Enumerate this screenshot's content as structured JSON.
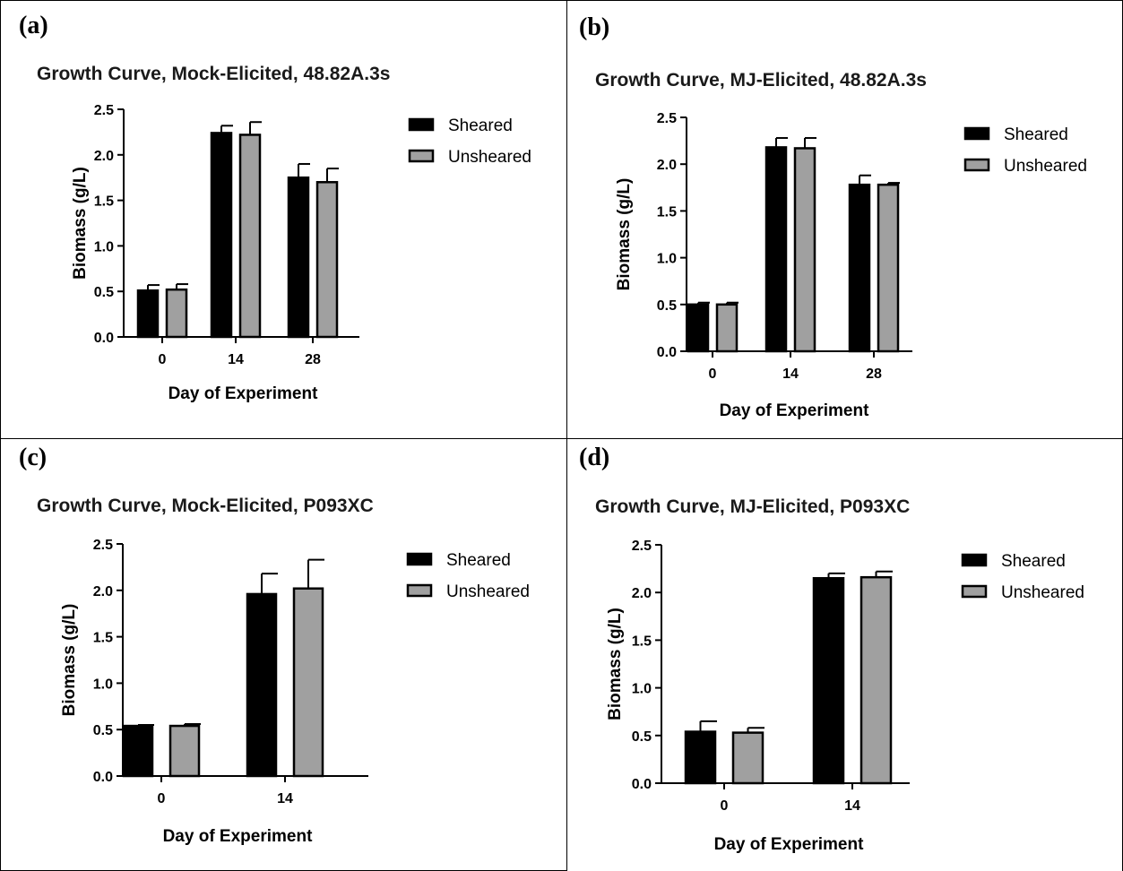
{
  "colors": {
    "sheared": "#000000",
    "unsheared": "#a0a0a0",
    "outline": "#000000"
  },
  "panels": [
    {
      "label": "(a)"
    },
    {
      "label": "(b)"
    },
    {
      "label": "(c)"
    },
    {
      "label": "(d)"
    }
  ],
  "chart_data": [
    {
      "type": "bar",
      "title": "Growth Curve, Mock-Elicited, 48.82A.3s",
      "xlabel": "Day of Experiment",
      "ylabel": "Biomass (g/L)",
      "categories": [
        "0",
        "14",
        "28"
      ],
      "ylim": [
        0,
        2.5
      ],
      "yticks": [
        "0.0",
        "0.5",
        "1.0",
        "1.5",
        "2.0",
        "2.5"
      ],
      "legend": "right",
      "series": [
        {
          "name": "Sheared",
          "values": [
            0.51,
            2.24,
            1.75
          ],
          "errors": [
            0.06,
            0.08,
            0.15
          ]
        },
        {
          "name": "Unsheared",
          "values": [
            0.52,
            2.22,
            1.7
          ],
          "errors": [
            0.06,
            0.14,
            0.15
          ]
        }
      ]
    },
    {
      "type": "bar",
      "title": "Growth Curve, MJ-Elicited, 48.82A.3s",
      "xlabel": "Day of Experiment",
      "ylabel": "Biomass (g/L)",
      "categories": [
        "0",
        "14",
        "28"
      ],
      "ylim": [
        0,
        2.5
      ],
      "yticks": [
        "0.0",
        "0.5",
        "1.0",
        "1.5",
        "2.0",
        "2.5"
      ],
      "legend": "right",
      "series": [
        {
          "name": "Sheared",
          "values": [
            0.5,
            2.18,
            1.78
          ],
          "errors": [
            0.02,
            0.1,
            0.1
          ]
        },
        {
          "name": "Unsheared",
          "values": [
            0.5,
            2.17,
            1.78
          ],
          "errors": [
            0.02,
            0.11,
            0.02
          ]
        }
      ]
    },
    {
      "type": "bar",
      "title": "Growth Curve, Mock-Elicited, P093XC",
      "xlabel": "Day of Experiment",
      "ylabel": "Biomass (g/L)",
      "categories": [
        "0",
        "14"
      ],
      "ylim": [
        0,
        2.5
      ],
      "yticks": [
        "0.0",
        "0.5",
        "1.0",
        "1.5",
        "2.0",
        "2.5"
      ],
      "legend": "right",
      "series": [
        {
          "name": "Sheared",
          "values": [
            0.54,
            1.96
          ],
          "errors": [
            0.01,
            0.22
          ]
        },
        {
          "name": "Unsheared",
          "values": [
            0.54,
            2.02
          ],
          "errors": [
            0.02,
            0.31
          ]
        }
      ]
    },
    {
      "type": "bar",
      "title": "Growth Curve, MJ-Elicited, P093XC",
      "xlabel": "Day of Experiment",
      "ylabel": "Biomass (g/L)",
      "categories": [
        "0",
        "14"
      ],
      "ylim": [
        0,
        2.5
      ],
      "yticks": [
        "0.0",
        "0.5",
        "1.0",
        "1.5",
        "2.0",
        "2.5"
      ],
      "legend": "right",
      "series": [
        {
          "name": "Sheared",
          "values": [
            0.54,
            2.15
          ],
          "errors": [
            0.11,
            0.05
          ]
        },
        {
          "name": "Unsheared",
          "values": [
            0.53,
            2.16
          ],
          "errors": [
            0.05,
            0.06
          ]
        }
      ]
    }
  ]
}
